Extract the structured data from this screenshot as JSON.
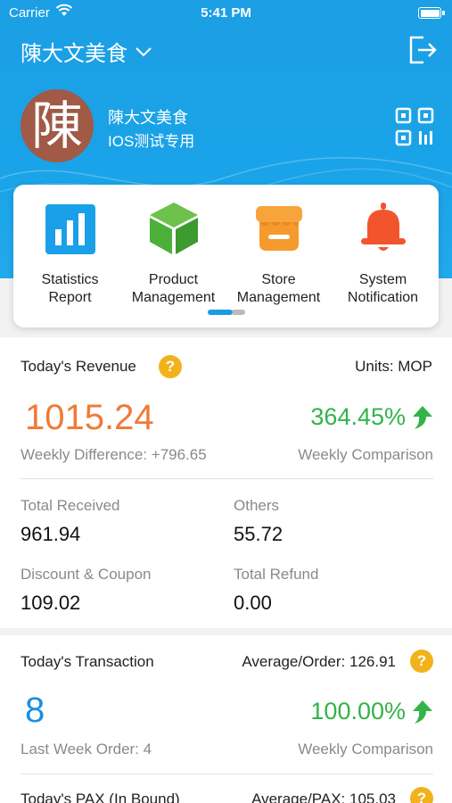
{
  "status_bar": {
    "carrier": "Carrier",
    "time": "5:41 PM"
  },
  "nav": {
    "store_name": "陳大文美食"
  },
  "profile": {
    "avatar_char": "陳",
    "name": "陳大文美食",
    "subtitle": "IOS测试专用"
  },
  "menu": {
    "items": [
      {
        "label_line1": "Statistics",
        "label_line2": "Report",
        "icon": "bar-chart-icon",
        "color": "#1aa0e8"
      },
      {
        "label_line1": "Product",
        "label_line2": "Management",
        "icon": "cube-icon",
        "color": "#4caf3a"
      },
      {
        "label_line1": "Store",
        "label_line2": "Management",
        "icon": "store-icon",
        "color": "#f59a2c"
      },
      {
        "label_line1": "System",
        "label_line2": "Notification",
        "icon": "bell-icon",
        "color": "#f2552b"
      }
    ],
    "page_indicator": {
      "current": 1,
      "total": 2
    }
  },
  "revenue": {
    "title": "Today's Revenue",
    "help": "?",
    "units": "Units: MOP",
    "amount": "1015.24",
    "weekly_pct": "364.45%",
    "weekly_difference": "Weekly Difference: +796.65",
    "weekly_comparison": "Weekly Comparison",
    "total_received_label": "Total Received",
    "total_received": "961.94",
    "others_label": "Others",
    "others": "55.72",
    "discount_label": "Discount & Coupon",
    "discount": "109.02",
    "refund_label": "Total Refund",
    "refund": "0.00"
  },
  "transaction": {
    "title": "Today's Transaction",
    "average_order": "Average/Order: 126.91",
    "help": "?",
    "count": "8",
    "weekly_pct": "100.00%",
    "last_week": "Last Week Order: 4",
    "weekly_comparison": "Weekly Comparison"
  },
  "pax": {
    "title": "Today's PAX (In Bound)",
    "average_pax": "Average/PAX: 105.03",
    "help": "?"
  },
  "colors": {
    "header": "#1c9fe4",
    "orange": "#f07a35",
    "green": "#33b34a",
    "blue": "#1a8fe3",
    "help": "#f2b21b"
  }
}
